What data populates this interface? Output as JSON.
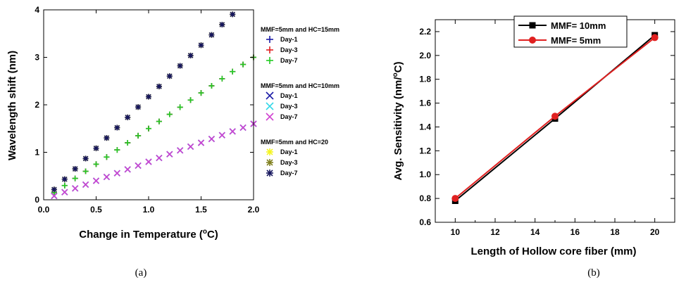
{
  "captions": {
    "a": "(a)",
    "b": "(b)"
  },
  "chart_data": [
    {
      "type": "scatter",
      "xlabel": "Change in Temperature (°C)",
      "ylabel": "Wavelength shift (nm)",
      "xlim": [
        0,
        2.0
      ],
      "ylim": [
        0,
        4
      ],
      "xticks": [
        "0.0",
        "0.5",
        "1.0",
        "1.5",
        "2.0"
      ],
      "yticks": [
        "0",
        "1",
        "2",
        "3",
        "4"
      ],
      "grid": false,
      "legend_position": "right",
      "groups": [
        {
          "title": "MMF=5mm and HC=15mm",
          "series": [
            {
              "name": "Day-1",
              "marker": "plus",
              "color": "#1a1aa6",
              "slope": 1.5,
              "x_min": 0.1,
              "x_max": 2.0
            },
            {
              "name": "Day-3",
              "marker": "plus",
              "color": "#e02020",
              "slope": 1.5,
              "x_min": 0.1,
              "x_max": 2.0
            },
            {
              "name": "Day-7",
              "marker": "plus",
              "color": "#22cc22",
              "slope": 1.5,
              "x_min": 0.1,
              "x_max": 2.0
            }
          ]
        },
        {
          "title": "MMF=5mm and HC=10mm",
          "series": [
            {
              "name": "Day-1",
              "marker": "x",
              "color": "#1a1aa6",
              "slope": 0.8,
              "x_min": 0.1,
              "x_max": 2.0
            },
            {
              "name": "Day-3",
              "marker": "x",
              "color": "#33d8e8",
              "slope": 0.8,
              "x_min": 0.1,
              "x_max": 2.0
            },
            {
              "name": "Day-7",
              "marker": "x",
              "color": "#d040d0",
              "slope": 0.8,
              "x_min": 0.1,
              "x_max": 2.0
            }
          ]
        },
        {
          "title": "MMF=5mm and HC=20",
          "series": [
            {
              "name": "Day-1",
              "marker": "star",
              "color": "#f5f520",
              "slope": 2.17,
              "x_min": 0.1,
              "x_max": 1.8
            },
            {
              "name": "Day-3",
              "marker": "star",
              "color": "#808020",
              "slope": 2.17,
              "x_min": 0.1,
              "x_max": 1.8
            },
            {
              "name": "Day-7",
              "marker": "star",
              "color": "#16165e",
              "slope": 2.17,
              "x_min": 0.1,
              "x_max": 1.8
            }
          ]
        }
      ]
    },
    {
      "type": "line",
      "xlabel": "Length of Hollow core fiber (mm)",
      "ylabel": "Avg. Sensitivity (nm/°C)",
      "xlim": [
        9,
        21
      ],
      "ylim": [
        0.6,
        2.3
      ],
      "xticks": [
        10,
        12,
        14,
        16,
        18,
        20
      ],
      "yticks": [
        "0.6",
        "0.8",
        "1.0",
        "1.2",
        "1.4",
        "1.6",
        "1.8",
        "2.0",
        "2.2"
      ],
      "grid": false,
      "legend_position": "top",
      "x": [
        10,
        15,
        20
      ],
      "series": [
        {
          "name": "MMF= 10mm",
          "marker": "square",
          "color": "#000000",
          "values": [
            0.78,
            1.47,
            2.17
          ]
        },
        {
          "name": "MMF= 5mm",
          "marker": "circle",
          "color": "#e02020",
          "values": [
            0.8,
            1.49,
            2.15
          ]
        }
      ]
    }
  ]
}
